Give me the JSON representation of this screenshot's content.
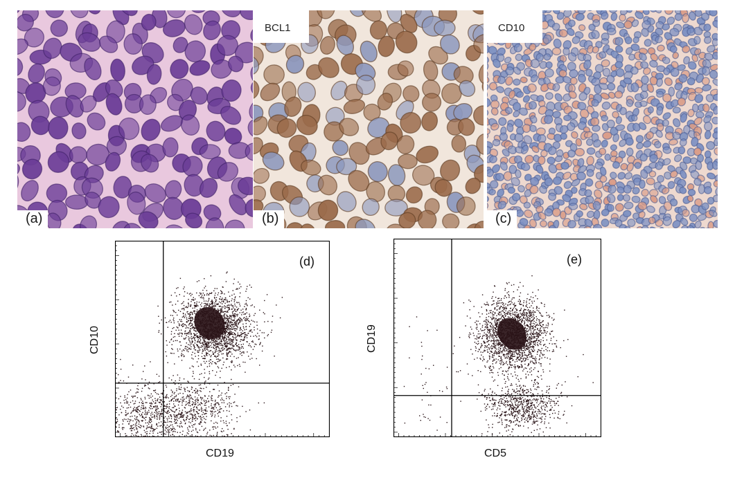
{
  "figure": {
    "panels": [
      {
        "letter": "(a)",
        "stain": "",
        "base": "#e9c8de",
        "cell_fill": "#6b3d97",
        "cell_edge": "#3d1f66"
      },
      {
        "letter": "(b)",
        "stain": "BCL1",
        "base": "#f1e6dc",
        "cell_fill": "#9a6a4a",
        "cell_edge": "#5c3a22",
        "alt_fill": "#8d98bd"
      },
      {
        "letter": "(c)",
        "stain": "CD10",
        "base": "#eed9cf",
        "cell_fill": "#7b8fc2",
        "cell_edge": "#4d5d92",
        "alt_fill": "#d99b86"
      }
    ]
  },
  "chart_data": [
    {
      "type": "scatter",
      "panel": "(d)",
      "xlabel": "CD19",
      "ylabel": "CD10",
      "xlim": [
        0,
        1
      ],
      "ylim": [
        0,
        1
      ],
      "gates": {
        "x": 0.225,
        "y": 0.275
      },
      "populations": [
        {
          "center": [
            0.46,
            0.56
          ],
          "spread": [
            0.09,
            0.09
          ],
          "count": 2000,
          "dense_core": [
            0.44,
            0.58
          ]
        },
        {
          "center": [
            0.16,
            0.12
          ],
          "spread": [
            0.12,
            0.08
          ],
          "count": 700
        },
        {
          "center": [
            0.38,
            0.14
          ],
          "spread": [
            0.1,
            0.08
          ],
          "count": 500
        }
      ],
      "grid": false,
      "point_color": "#2a1418"
    },
    {
      "type": "scatter",
      "panel": "(e)",
      "xlabel": "CD5",
      "ylabel": "CD19",
      "xlim": [
        0,
        1
      ],
      "ylim": [
        0,
        1
      ],
      "gates": {
        "x": 0.28,
        "y": 0.21
      },
      "populations": [
        {
          "center": [
            0.57,
            0.52
          ],
          "spread": [
            0.085,
            0.09
          ],
          "count": 2000,
          "dense_core": [
            0.57,
            0.52
          ]
        },
        {
          "center": [
            0.62,
            0.16
          ],
          "spread": [
            0.09,
            0.06
          ],
          "count": 700
        },
        {
          "center": [
            0.15,
            0.3
          ],
          "spread": [
            0.07,
            0.18
          ],
          "count": 45
        }
      ],
      "grid": false,
      "point_color": "#2a1418"
    }
  ]
}
